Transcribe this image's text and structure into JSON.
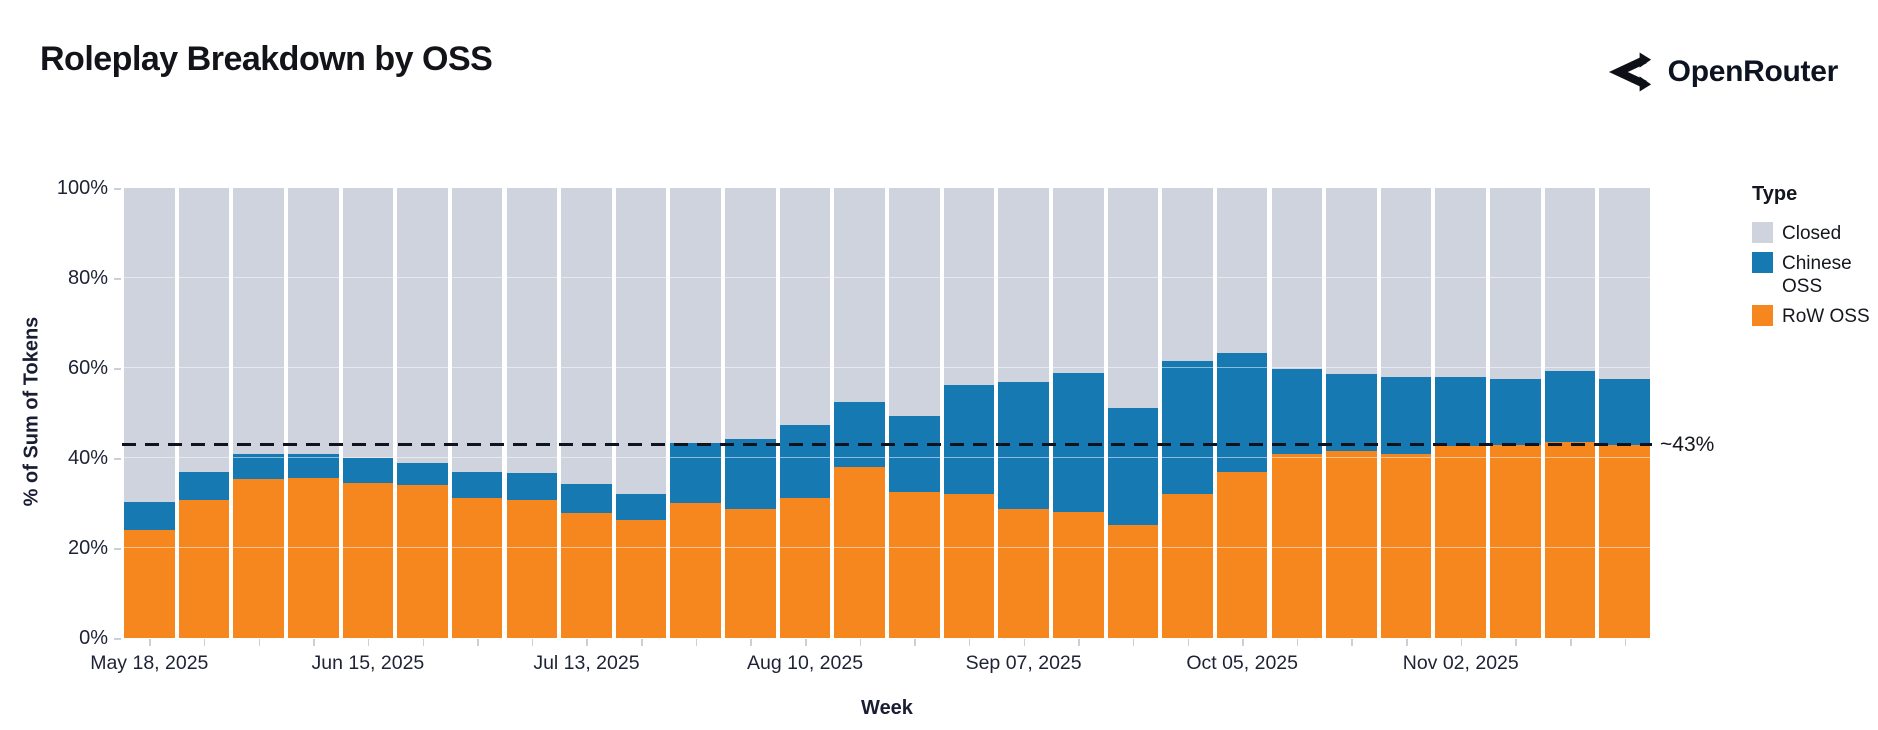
{
  "header": {
    "title": "Roleplay Breakdown by OSS",
    "brand": "OpenRouter"
  },
  "chart_data": {
    "type": "bar",
    "stacked": true,
    "normalized_percent": true,
    "title": "Roleplay Breakdown by OSS",
    "xlabel": "Week",
    "ylabel": "% of Sum of Tokens",
    "ylim": [
      0,
      100
    ],
    "y_ticks": [
      0,
      20,
      40,
      60,
      80,
      100
    ],
    "y_tick_labels": [
      "0%",
      "20%",
      "40%",
      "60%",
      "80%",
      "100%"
    ],
    "x_tick_shown_every": 4,
    "x_tick_labels": [
      "May 18, 2025",
      "Jun 15, 2025",
      "Jul 13, 2025",
      "Aug 10, 2025",
      "Sep 07, 2025",
      "Oct 05, 2025",
      "Nov 02, 2025"
    ],
    "categories": [
      "May 18, 2025",
      "May 25, 2025",
      "Jun 01, 2025",
      "Jun 08, 2025",
      "Jun 15, 2025",
      "Jun 22, 2025",
      "Jun 29, 2025",
      "Jul 06, 2025",
      "Jul 13, 2025",
      "Jul 20, 2025",
      "Jul 27, 2025",
      "Aug 03, 2025",
      "Aug 10, 2025",
      "Aug 17, 2025",
      "Aug 24, 2025",
      "Aug 31, 2025",
      "Sep 07, 2025",
      "Sep 14, 2025",
      "Sep 21, 2025",
      "Sep 28, 2025",
      "Oct 05, 2025",
      "Oct 12, 2025",
      "Oct 19, 2025",
      "Oct 26, 2025",
      "Nov 02, 2025",
      "Nov 09, 2025",
      "Nov 16, 2025",
      "Nov 23, 2025"
    ],
    "series": [
      {
        "name": "RoW OSS",
        "color": "#f6871f",
        "values": [
          24.0,
          30.6,
          35.4,
          35.6,
          34.5,
          34.0,
          31.2,
          30.6,
          27.8,
          26.2,
          29.9,
          28.6,
          31.1,
          37.9,
          32.5,
          32.0,
          28.6,
          27.9,
          25.1,
          32.1,
          36.8,
          41.0,
          41.6,
          41.0,
          42.6,
          42.9,
          43.5,
          42.9
        ]
      },
      {
        "name": "Chinese OSS",
        "color": "#1779b2",
        "values": [
          6.3,
          6.3,
          5.4,
          5.4,
          5.5,
          5.0,
          5.8,
          6.0,
          6.4,
          5.9,
          13.5,
          15.6,
          16.2,
          14.6,
          16.8,
          24.3,
          28.3,
          31.1,
          26.1,
          29.5,
          26.5,
          18.7,
          17.1,
          17.0,
          15.5,
          14.7,
          15.8,
          14.6
        ]
      },
      {
        "name": "Closed",
        "color": "#ced3de",
        "values": [
          69.7,
          63.1,
          59.2,
          59.0,
          60.0,
          61.0,
          63.0,
          63.4,
          65.8,
          67.9,
          56.6,
          55.8,
          52.7,
          47.5,
          50.7,
          43.7,
          43.1,
          41.0,
          48.8,
          38.4,
          36.7,
          40.3,
          41.3,
          42.0,
          41.9,
          42.4,
          40.7,
          42.5
        ]
      }
    ],
    "reference_line": {
      "value": 43,
      "label": "~43%",
      "style": "dashed",
      "color": "#0e1320"
    },
    "legend": {
      "title": "Type",
      "position": "right",
      "entries": [
        {
          "label": "Closed",
          "color": "#ced3de"
        },
        {
          "label": "Chinese OSS",
          "color": "#1779b2"
        },
        {
          "label": "RoW OSS",
          "color": "#f6871f"
        }
      ]
    },
    "grid": "horizontal-white-at-20pct-steps",
    "legend_order_note": "bars stack bottom-to-top: RoW OSS, Chinese OSS, Closed"
  }
}
